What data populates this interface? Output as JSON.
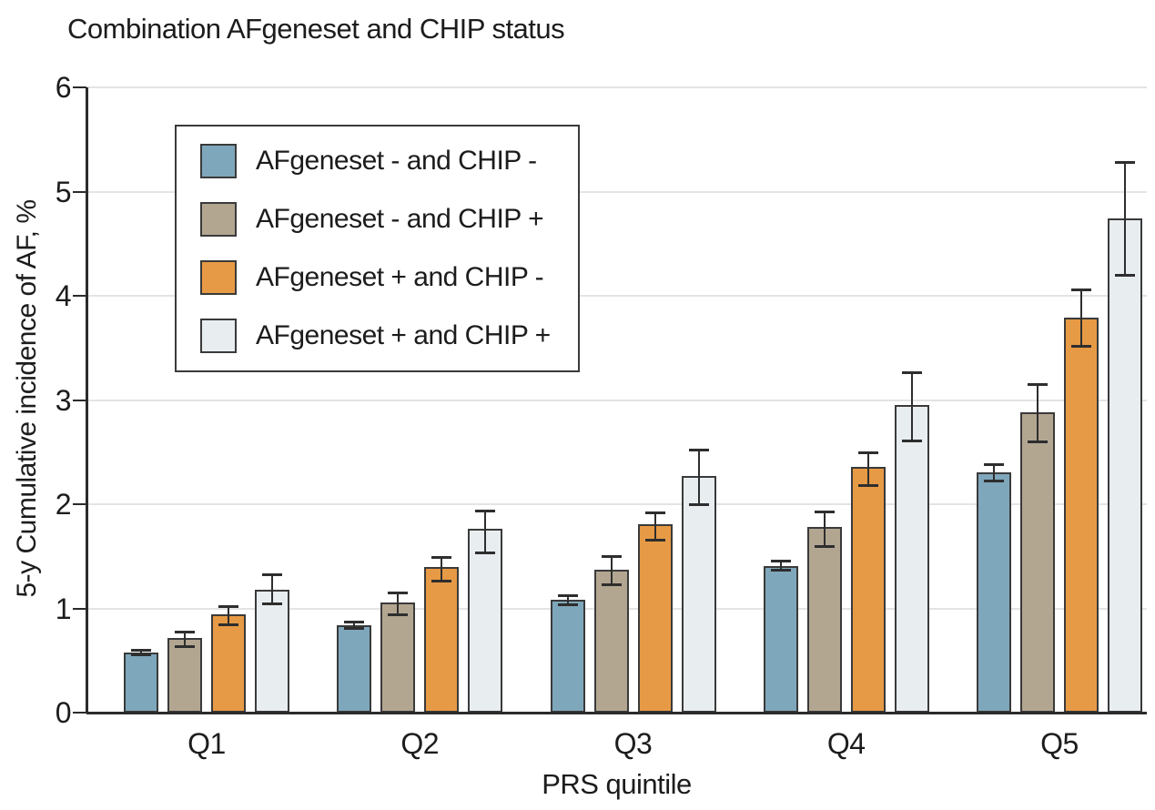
{
  "figure": {
    "title": "Combination AFgeneset and CHIP status",
    "ylabel": "5-y Cumulative incidence of AF, %",
    "xlabel": "PRS quintile"
  },
  "colors": {
    "series_1": "#7fa7bb",
    "series_2": "#b3a691",
    "series_3": "#e79a45",
    "series_4": "#e8edf0",
    "bar_border": "#3a3a3a",
    "axis": "#2b2b2b",
    "gridline": "#e4e4e4",
    "text": "#1c1c1c"
  },
  "chart_data": {
    "type": "bar",
    "title": "Combination AFgeneset and CHIP status",
    "xlabel": "PRS quintile",
    "ylabel": "5-y Cumulative incidence of AF, %",
    "categories": [
      "Q1",
      "Q2",
      "Q3",
      "Q4",
      "Q5"
    ],
    "ylim": [
      0,
      6
    ],
    "yticks": [
      0,
      1,
      2,
      3,
      4,
      5,
      6
    ],
    "grid": true,
    "error_bars": true,
    "legend_position": "upper-left-inside",
    "series": [
      {
        "name": "AFgeneset - and CHIP -",
        "color": "#7fa7bb",
        "values": [
          0.58,
          0.84,
          1.08,
          1.41,
          2.31
        ],
        "ci_low": [
          0.56,
          0.81,
          1.04,
          1.37,
          2.23
        ],
        "ci_high": [
          0.6,
          0.87,
          1.13,
          1.46,
          2.38
        ]
      },
      {
        "name": "AFgeneset - and CHIP +",
        "color": "#b3a691",
        "values": [
          0.72,
          1.06,
          1.37,
          1.78,
          2.88
        ],
        "ci_low": [
          0.64,
          0.94,
          1.23,
          1.6,
          2.6
        ],
        "ci_high": [
          0.78,
          1.15,
          1.5,
          1.93,
          3.15
        ]
      },
      {
        "name": "AFgeneset + and CHIP -",
        "color": "#e79a45",
        "values": [
          0.94,
          1.4,
          1.81,
          2.36,
          3.79
        ],
        "ci_low": [
          0.85,
          1.27,
          1.66,
          2.18,
          3.52
        ],
        "ci_high": [
          1.02,
          1.49,
          1.92,
          2.5,
          4.06
        ]
      },
      {
        "name": "AFgeneset + and CHIP +",
        "color": "#e8edf0",
        "values": [
          1.18,
          1.76,
          2.27,
          2.95,
          4.74
        ],
        "ci_low": [
          1.05,
          1.54,
          2.0,
          2.61,
          4.2
        ],
        "ci_high": [
          1.33,
          1.94,
          2.52,
          3.27,
          5.28
        ]
      }
    ]
  }
}
